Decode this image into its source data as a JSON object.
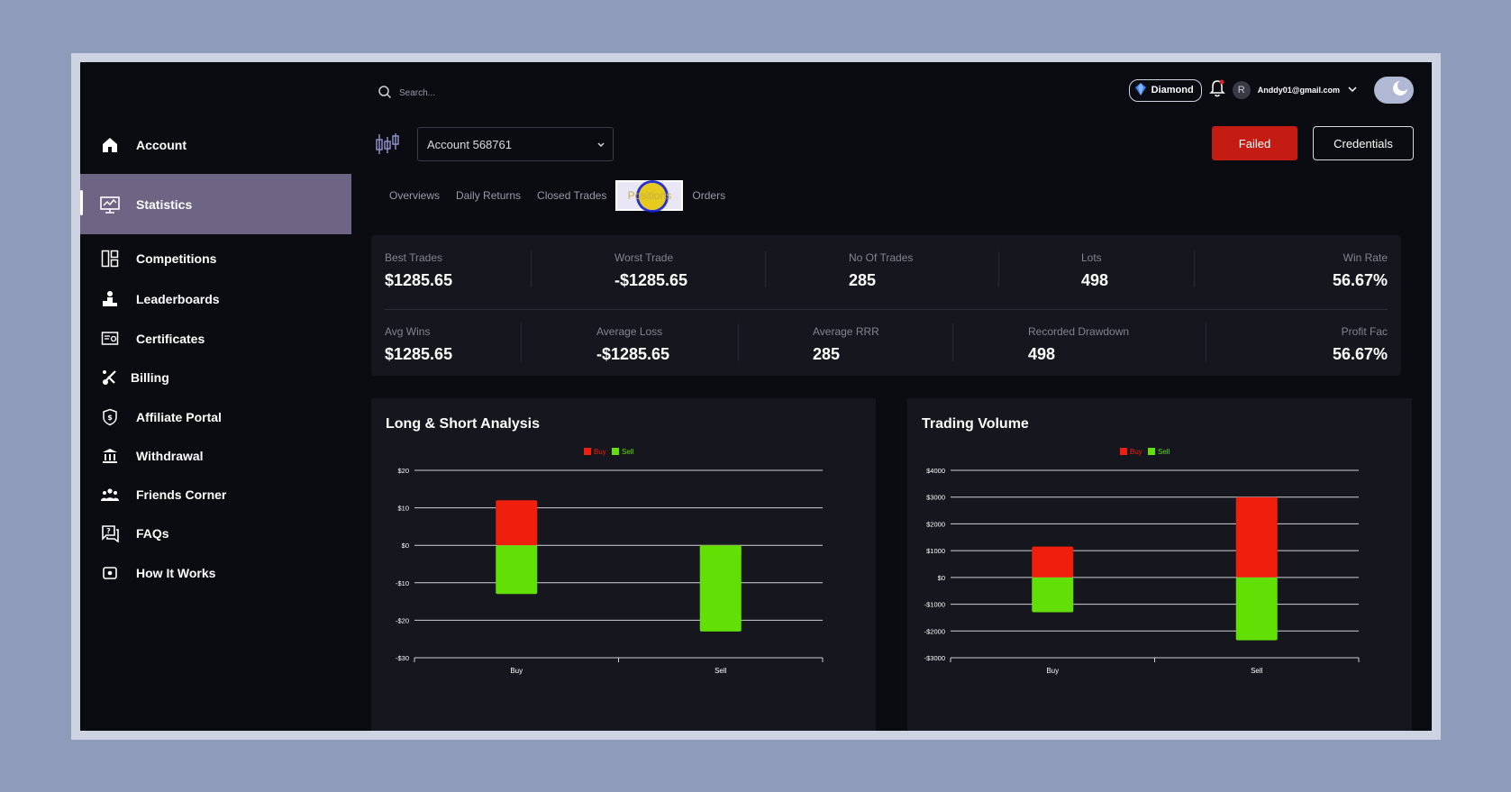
{
  "sidebar": {
    "items": [
      {
        "label": "Account",
        "icon": "home-icon"
      },
      {
        "label": "Statistics",
        "icon": "chart-monitor-icon"
      },
      {
        "label": "Competitions",
        "icon": "layout-icon"
      },
      {
        "label": "Leaderboards",
        "icon": "podium-icon"
      },
      {
        "label": "Certificates",
        "icon": "certificate-icon"
      },
      {
        "label": "Billing",
        "icon": "billing-icon"
      },
      {
        "label": "Affiliate Portal",
        "icon": "shield-icon"
      },
      {
        "label": "Withdrawal",
        "icon": "bank-icon"
      },
      {
        "label": "Friends Corner",
        "icon": "users-icon"
      },
      {
        "label": "FAQs",
        "icon": "faq-icon"
      },
      {
        "label": "How It Works",
        "icon": "info-box-icon"
      }
    ],
    "active": "Statistics"
  },
  "topbar": {
    "search_placeholder": "Search...",
    "badge": "Diamond",
    "avatar_initial": "R",
    "email": "Anddy01@gmail.com"
  },
  "account": {
    "selected": "Account 568761",
    "failed_label": "Failed",
    "credentials_label": "Credentials"
  },
  "tabs": [
    "Overviews",
    "Daily Returns",
    "Closed Trades",
    "Positions",
    "Orders"
  ],
  "stats": {
    "row1": [
      {
        "label": "Best Trades",
        "value": "$1285.65"
      },
      {
        "label": "Worst Trade",
        "value": "-$1285.65"
      },
      {
        "label": "No Of Trades",
        "value": "285"
      },
      {
        "label": "Lots",
        "value": "498"
      },
      {
        "label": "Win Rate",
        "value": "56.67%"
      }
    ],
    "row2": [
      {
        "label": "Avg Wins",
        "value": "$1285.65"
      },
      {
        "label": "Average Loss",
        "value": "-$1285.65"
      },
      {
        "label": "Average RRR",
        "value": "285"
      },
      {
        "label": "Recorded Drawdown",
        "value": "498"
      },
      {
        "label": "Profit Fac",
        "value": "56.67%"
      }
    ]
  },
  "colors": {
    "buy": "#f01e0c",
    "sell": "#62df05",
    "failed": "#c41b12"
  },
  "chart_data": [
    {
      "type": "bar",
      "title": "Long & Short Analysis",
      "categories": [
        "Buy",
        "Sell"
      ],
      "series": [
        {
          "name": "Buy",
          "values": [
            12,
            -3
          ]
        },
        {
          "name": "Sell",
          "values": [
            -13,
            -23
          ]
        }
      ],
      "ylim": [
        -30,
        20
      ],
      "yticks": [
        20,
        10,
        0,
        -10,
        -20,
        -30
      ],
      "ytick_labels": [
        "$20",
        "$10",
        "$0",
        "-$10",
        "-$20",
        "-$30"
      ],
      "stacked": true,
      "legend": "top-center",
      "grid": true
    },
    {
      "type": "bar",
      "title": "Trading Volume",
      "categories": [
        "Buy",
        "Sell"
      ],
      "series": [
        {
          "name": "Buy",
          "values": [
            1150,
            3000
          ]
        },
        {
          "name": "Sell",
          "values": [
            -1300,
            -2350
          ]
        }
      ],
      "ylim": [
        -3000,
        4000
      ],
      "yticks": [
        4000,
        3000,
        2000,
        1000,
        0,
        -1000,
        -2000,
        -3000
      ],
      "ytick_labels": [
        "$4000",
        "$3000",
        "$2000",
        "$1000",
        "$0",
        "-$1000",
        "-$2000",
        "-$3000"
      ],
      "stacked": true,
      "legend": "top-center",
      "grid": true
    }
  ]
}
